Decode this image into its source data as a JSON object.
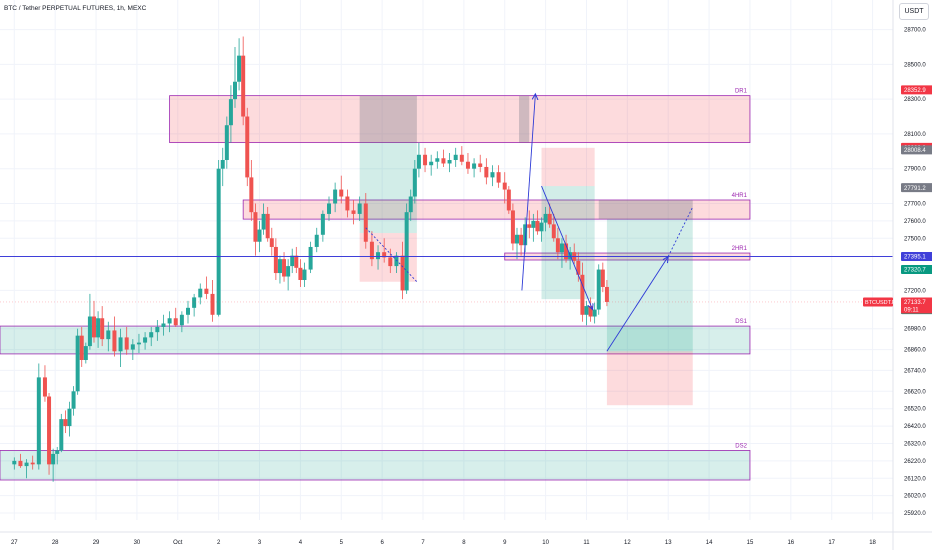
{
  "header": {
    "title": "BTC / Tether PERPETUAL FUTURES, 1h, MEXC",
    "currency": "USDT"
  },
  "colors": {
    "up": "#26a69a",
    "down": "#ef5350",
    "zone_red_fill": "rgba(242,54,69,0.18)",
    "zone_green_fill": "rgba(8,153,129,0.16)",
    "zone_border": "#9c27b0",
    "blue_line": "#3f3fd9",
    "arrow": "#2e3bd6",
    "grey_box": "rgba(120,123,134,0.35)"
  },
  "chart_data": {
    "type": "candlestick",
    "symbol_label": "BTCUSDT.P",
    "last_price": "27133.7",
    "countdown": "09:11",
    "ylim": [
      25880,
      28870
    ],
    "xlim": [
      -0.35,
      21.5
    ],
    "x_ticks": [
      {
        "x": 0,
        "label": "27"
      },
      {
        "x": 1,
        "label": "28"
      },
      {
        "x": 2,
        "label": "29"
      },
      {
        "x": 3,
        "label": "30"
      },
      {
        "x": 4,
        "label": "Oct"
      },
      {
        "x": 5,
        "label": "2"
      },
      {
        "x": 6,
        "label": "3"
      },
      {
        "x": 7,
        "label": "4"
      },
      {
        "x": 8,
        "label": "5"
      },
      {
        "x": 9,
        "label": "6"
      },
      {
        "x": 10,
        "label": "7"
      },
      {
        "x": 11,
        "label": "8"
      },
      {
        "x": 12,
        "label": "9"
      },
      {
        "x": 13,
        "label": "10"
      },
      {
        "x": 14,
        "label": "11"
      },
      {
        "x": 15,
        "label": "12"
      },
      {
        "x": 16,
        "label": "13"
      },
      {
        "x": 17,
        "label": "14"
      },
      {
        "x": 18,
        "label": "15"
      },
      {
        "x": 19,
        "label": "16"
      },
      {
        "x": 20,
        "label": "17"
      },
      {
        "x": 21,
        "label": "18"
      }
    ],
    "y_ticks": [
      {
        "value": 28700,
        "label": "28700.0"
      },
      {
        "value": 28500,
        "label": "28500.0"
      },
      {
        "value": 28300,
        "label": "28300.0"
      },
      {
        "value": 28100,
        "label": "28100.0"
      },
      {
        "value": 27900,
        "label": "27900.0"
      },
      {
        "value": 27700,
        "label": "27700.0"
      },
      {
        "value": 27600,
        "label": "27600.0"
      },
      {
        "value": 27500,
        "label": "27500.0"
      },
      {
        "value": 27200,
        "label": "27200.0"
      },
      {
        "value": 26980,
        "label": "26980.0"
      },
      {
        "value": 26860,
        "label": "26860.0"
      },
      {
        "value": 26740,
        "label": "26740.0"
      },
      {
        "value": 26620,
        "label": "26620.0"
      },
      {
        "value": 26520,
        "label": "26520.0"
      },
      {
        "value": 26420,
        "label": "26420.0"
      },
      {
        "value": 26320,
        "label": "26320.0"
      },
      {
        "value": 26220,
        "label": "26220.0"
      },
      {
        "value": 26120,
        "label": "26120.0"
      },
      {
        "value": 26020,
        "label": "26020.0"
      },
      {
        "value": 25920,
        "label": "25920.0"
      }
    ],
    "price_labels": [
      {
        "value": 28352.9,
        "label": "28352.9",
        "color": "#f23645"
      },
      {
        "value": 28022.8,
        "label": "28022.8",
        "color": "#f23645"
      },
      {
        "value": 28008.4,
        "label": "28008.4",
        "color": "#787b86"
      },
      {
        "value": 27791.2,
        "label": "27791.2",
        "color": "#787b86"
      },
      {
        "value": 27395.1,
        "label": "27395.1",
        "color": "#3f3fd9"
      },
      {
        "value": 27320.7,
        "label": "27320.7",
        "color": "#089981"
      },
      {
        "value": 27089.7,
        "label": "27089.7",
        "color": "#089981"
      }
    ],
    "zones": [
      {
        "name": "DR1",
        "x0": 3.8,
        "x1": 18.0,
        "top": 28320,
        "bottom": 28050,
        "kind": "red"
      },
      {
        "name": "4HR1",
        "x0": 5.6,
        "x1": 18.0,
        "top": 27720,
        "bottom": 27610,
        "kind": "red"
      },
      {
        "name": "2HR1",
        "x0": 12.0,
        "x1": 18.0,
        "top": 27415,
        "bottom": 27375,
        "kind": "red"
      },
      {
        "name": "DS1",
        "x0": -0.35,
        "x1": 18.0,
        "top": 26995,
        "bottom": 26835,
        "kind": "green"
      },
      {
        "name": "DS2",
        "x0": -0.35,
        "x1": 18.0,
        "top": 26280,
        "bottom": 26110,
        "kind": "green"
      }
    ],
    "horizontal_line": 27395.1,
    "candles": [
      [
        0.0,
        26200,
        26240,
        26170,
        26220
      ],
      [
        0.15,
        26220,
        26260,
        26180,
        26190
      ],
      [
        0.3,
        26190,
        26230,
        26120,
        26210
      ],
      [
        0.45,
        26210,
        26250,
        26170,
        26200
      ],
      [
        0.6,
        26200,
        26780,
        26170,
        26700
      ],
      [
        0.75,
        26700,
        26770,
        26560,
        26590
      ],
      [
        0.85,
        26590,
        26610,
        26140,
        26200
      ],
      [
        0.95,
        26200,
        26290,
        26100,
        26260
      ],
      [
        1.05,
        26260,
        26300,
        26200,
        26280
      ],
      [
        1.15,
        26280,
        26490,
        26270,
        26460
      ],
      [
        1.25,
        26460,
        26510,
        26380,
        26420
      ],
      [
        1.35,
        26420,
        26560,
        26360,
        26520
      ],
      [
        1.45,
        26520,
        26650,
        26480,
        26620
      ],
      [
        1.55,
        26620,
        26980,
        26600,
        26940
      ],
      [
        1.65,
        26940,
        26990,
        26760,
        26800
      ],
      [
        1.75,
        26800,
        26900,
        26780,
        26880
      ],
      [
        1.85,
        26880,
        27180,
        26860,
        27050
      ],
      [
        1.95,
        27050,
        27140,
        26900,
        26930
      ],
      [
        2.05,
        26930,
        27080,
        26870,
        27040
      ],
      [
        2.15,
        27040,
        27110,
        26880,
        26920
      ],
      [
        2.3,
        26920,
        27020,
        26850,
        26970
      ],
      [
        2.45,
        26970,
        27050,
        26820,
        26850
      ],
      [
        2.6,
        26850,
        26980,
        26760,
        26930
      ],
      [
        2.75,
        26930,
        26990,
        26830,
        26860
      ],
      [
        2.9,
        26860,
        26920,
        26800,
        26890
      ],
      [
        3.05,
        26890,
        26950,
        26840,
        26900
      ],
      [
        3.2,
        26900,
        26960,
        26860,
        26930
      ],
      [
        3.35,
        26930,
        26990,
        26880,
        26960
      ],
      [
        3.5,
        26960,
        27030,
        26910,
        26990
      ],
      [
        3.65,
        26990,
        27060,
        26940,
        27010
      ],
      [
        3.8,
        27010,
        27080,
        26960,
        27040
      ],
      [
        3.95,
        27040,
        27100,
        26990,
        27000
      ],
      [
        4.1,
        27000,
        27080,
        26960,
        27060
      ],
      [
        4.25,
        27060,
        27140,
        27010,
        27100
      ],
      [
        4.4,
        27100,
        27180,
        27050,
        27160
      ],
      [
        4.55,
        27160,
        27240,
        27120,
        27210
      ],
      [
        4.7,
        27210,
        27280,
        27150,
        27180
      ],
      [
        4.85,
        27180,
        27260,
        27020,
        27060
      ],
      [
        5.0,
        27060,
        27950,
        27050,
        27900
      ],
      [
        5.1,
        27900,
        28020,
        27800,
        27950
      ],
      [
        5.2,
        27950,
        28200,
        27900,
        28150
      ],
      [
        5.3,
        28150,
        28380,
        28050,
        28300
      ],
      [
        5.4,
        28300,
        28600,
        28250,
        28400
      ],
      [
        5.5,
        28400,
        28650,
        28350,
        28550
      ],
      [
        5.6,
        28550,
        28660,
        28150,
        28200
      ],
      [
        5.7,
        28200,
        28250,
        27800,
        27850
      ],
      [
        5.8,
        27850,
        27950,
        27600,
        27650
      ],
      [
        5.9,
        27650,
        27700,
        27400,
        27480
      ],
      [
        6.0,
        27480,
        27600,
        27420,
        27550
      ],
      [
        6.1,
        27550,
        27700,
        27520,
        27640
      ],
      [
        6.2,
        27640,
        27680,
        27480,
        27500
      ],
      [
        6.3,
        27500,
        27560,
        27400,
        27450
      ],
      [
        6.4,
        27450,
        27500,
        27260,
        27300
      ],
      [
        6.5,
        27300,
        27400,
        27240,
        27380
      ],
      [
        6.6,
        27380,
        27420,
        27250,
        27280
      ],
      [
        6.7,
        27280,
        27380,
        27200,
        27340
      ],
      [
        6.8,
        27340,
        27440,
        27300,
        27400
      ],
      [
        6.9,
        27400,
        27450,
        27300,
        27330
      ],
      [
        7.0,
        27330,
        27380,
        27220,
        27260
      ],
      [
        7.1,
        27260,
        27360,
        27220,
        27320
      ],
      [
        7.25,
        27320,
        27480,
        27300,
        27450
      ],
      [
        7.4,
        27450,
        27560,
        27420,
        27520
      ],
      [
        7.55,
        27520,
        27660,
        27480,
        27640
      ],
      [
        7.7,
        27640,
        27740,
        27600,
        27700
      ],
      [
        7.85,
        27700,
        27820,
        27650,
        27780
      ],
      [
        8.0,
        27780,
        27860,
        27700,
        27740
      ],
      [
        8.15,
        27740,
        27780,
        27620,
        27660
      ],
      [
        8.3,
        27660,
        27720,
        27580,
        27640
      ],
      [
        8.45,
        27640,
        27740,
        27600,
        27700
      ],
      [
        8.6,
        27700,
        27760,
        27440,
        27480
      ],
      [
        8.75,
        27480,
        27540,
        27340,
        27380
      ],
      [
        8.9,
        27380,
        27460,
        27320,
        27420
      ],
      [
        9.05,
        27420,
        27500,
        27360,
        27390
      ],
      [
        9.2,
        27390,
        27440,
        27300,
        27340
      ],
      [
        9.35,
        27340,
        27420,
        27300,
        27400
      ],
      [
        9.5,
        27400,
        27480,
        27150,
        27200
      ],
      [
        9.6,
        27200,
        27700,
        27180,
        27650
      ],
      [
        9.7,
        27650,
        27780,
        27600,
        27740
      ],
      [
        9.8,
        27740,
        27950,
        27700,
        27900
      ],
      [
        9.9,
        27900,
        28050,
        27850,
        27980
      ],
      [
        10.05,
        27980,
        28020,
        27880,
        27920
      ],
      [
        10.2,
        27920,
        27980,
        27860,
        27940
      ],
      [
        10.35,
        27940,
        28000,
        27900,
        27960
      ],
      [
        10.5,
        27960,
        28010,
        27910,
        27930
      ],
      [
        10.65,
        27930,
        27990,
        27880,
        27950
      ],
      [
        10.8,
        27950,
        28020,
        27910,
        27980
      ],
      [
        10.95,
        27980,
        28030,
        27920,
        27940
      ],
      [
        11.1,
        27940,
        27990,
        27870,
        27900
      ],
      [
        11.25,
        27900,
        27960,
        27850,
        27930
      ],
      [
        11.4,
        27930,
        27980,
        27880,
        27910
      ],
      [
        11.55,
        27910,
        27960,
        27810,
        27850
      ],
      [
        11.7,
        27850,
        27920,
        27800,
        27880
      ],
      [
        11.85,
        27880,
        27920,
        27790,
        27820
      ],
      [
        12.0,
        27820,
        27880,
        27700,
        27780
      ],
      [
        12.1,
        27780,
        27800,
        27640,
        27660
      ],
      [
        12.2,
        27660,
        27700,
        27430,
        27470
      ],
      [
        12.3,
        27470,
        27560,
        27380,
        27520
      ],
      [
        12.4,
        27520,
        27560,
        27400,
        27460
      ],
      [
        12.5,
        27460,
        27620,
        27420,
        27580
      ],
      [
        12.6,
        27580,
        27660,
        27500,
        27560
      ],
      [
        12.7,
        27560,
        27640,
        27480,
        27600
      ],
      [
        12.8,
        27600,
        27660,
        27520,
        27540
      ],
      [
        12.9,
        27540,
        27620,
        27480,
        27590
      ],
      [
        13.0,
        27590,
        27680,
        27540,
        27640
      ],
      [
        13.1,
        27640,
        27700,
        27560,
        27580
      ],
      [
        13.2,
        27580,
        27640,
        27480,
        27500
      ],
      [
        13.3,
        27500,
        27560,
        27380,
        27420
      ],
      [
        13.4,
        27420,
        27500,
        27330,
        27470
      ],
      [
        13.5,
        27470,
        27520,
        27360,
        27380
      ],
      [
        13.6,
        27380,
        27450,
        27320,
        27420
      ],
      [
        13.7,
        27420,
        27470,
        27350,
        27370
      ],
      [
        13.8,
        27370,
        27420,
        27250,
        27290
      ],
      [
        13.9,
        27290,
        27360,
        27020,
        27060
      ],
      [
        14.0,
        27060,
        27140,
        27000,
        27110
      ],
      [
        14.1,
        27110,
        27160,
        27020,
        27050
      ],
      [
        14.2,
        27050,
        27130,
        27010,
        27090
      ],
      [
        14.3,
        27090,
        27350,
        27060,
        27320
      ],
      [
        14.4,
        27320,
        27360,
        27190,
        27220
      ],
      [
        14.5,
        27220,
        27260,
        27110,
        27133.7
      ]
    ]
  },
  "overlays": {
    "grey_boxes": [
      {
        "x0": 8.45,
        "x1": 9.85,
        "top": 28320,
        "bottom": 28050
      },
      {
        "x0": 12.35,
        "x1": 12.6,
        "top": 28320,
        "bottom": 28050
      },
      {
        "x0": 14.3,
        "x1": 16.6,
        "top": 27720,
        "bottom": 27610
      }
    ],
    "teal_boxes": [
      {
        "x0": 8.45,
        "x1": 9.85,
        "top": 28050,
        "bottom": 27530
      },
      {
        "x0": 12.9,
        "x1": 14.2,
        "top": 27800,
        "bottom": 27150
      },
      {
        "x0": 14.5,
        "x1": 16.6,
        "top": 27610,
        "bottom": 26850
      }
    ],
    "red_boxes": [
      {
        "x0": 8.45,
        "x1": 9.85,
        "top": 27530,
        "bottom": 27250
      },
      {
        "x0": 12.9,
        "x1": 14.2,
        "top": 28020,
        "bottom": 27800
      },
      {
        "x0": 14.5,
        "x1": 16.6,
        "top": 26850,
        "bottom": 26540
      }
    ]
  },
  "arrows": [
    {
      "points": [
        [
          12.42,
          27200
        ],
        [
          12.75,
          28330
        ]
      ],
      "dashed": false
    },
    {
      "points": [
        [
          12.9,
          27800
        ],
        [
          14.15,
          27090
        ]
      ],
      "dashed": false
    },
    {
      "points": [
        [
          14.5,
          26850
        ],
        [
          16.0,
          27395
        ]
      ],
      "dashed": false
    },
    {
      "points": [
        [
          16.0,
          27395
        ],
        [
          16.6,
          27680
        ]
      ],
      "dashed": true
    },
    {
      "points": [
        [
          8.6,
          27560
        ],
        [
          9.85,
          27250
        ]
      ],
      "dashed": true
    }
  ]
}
